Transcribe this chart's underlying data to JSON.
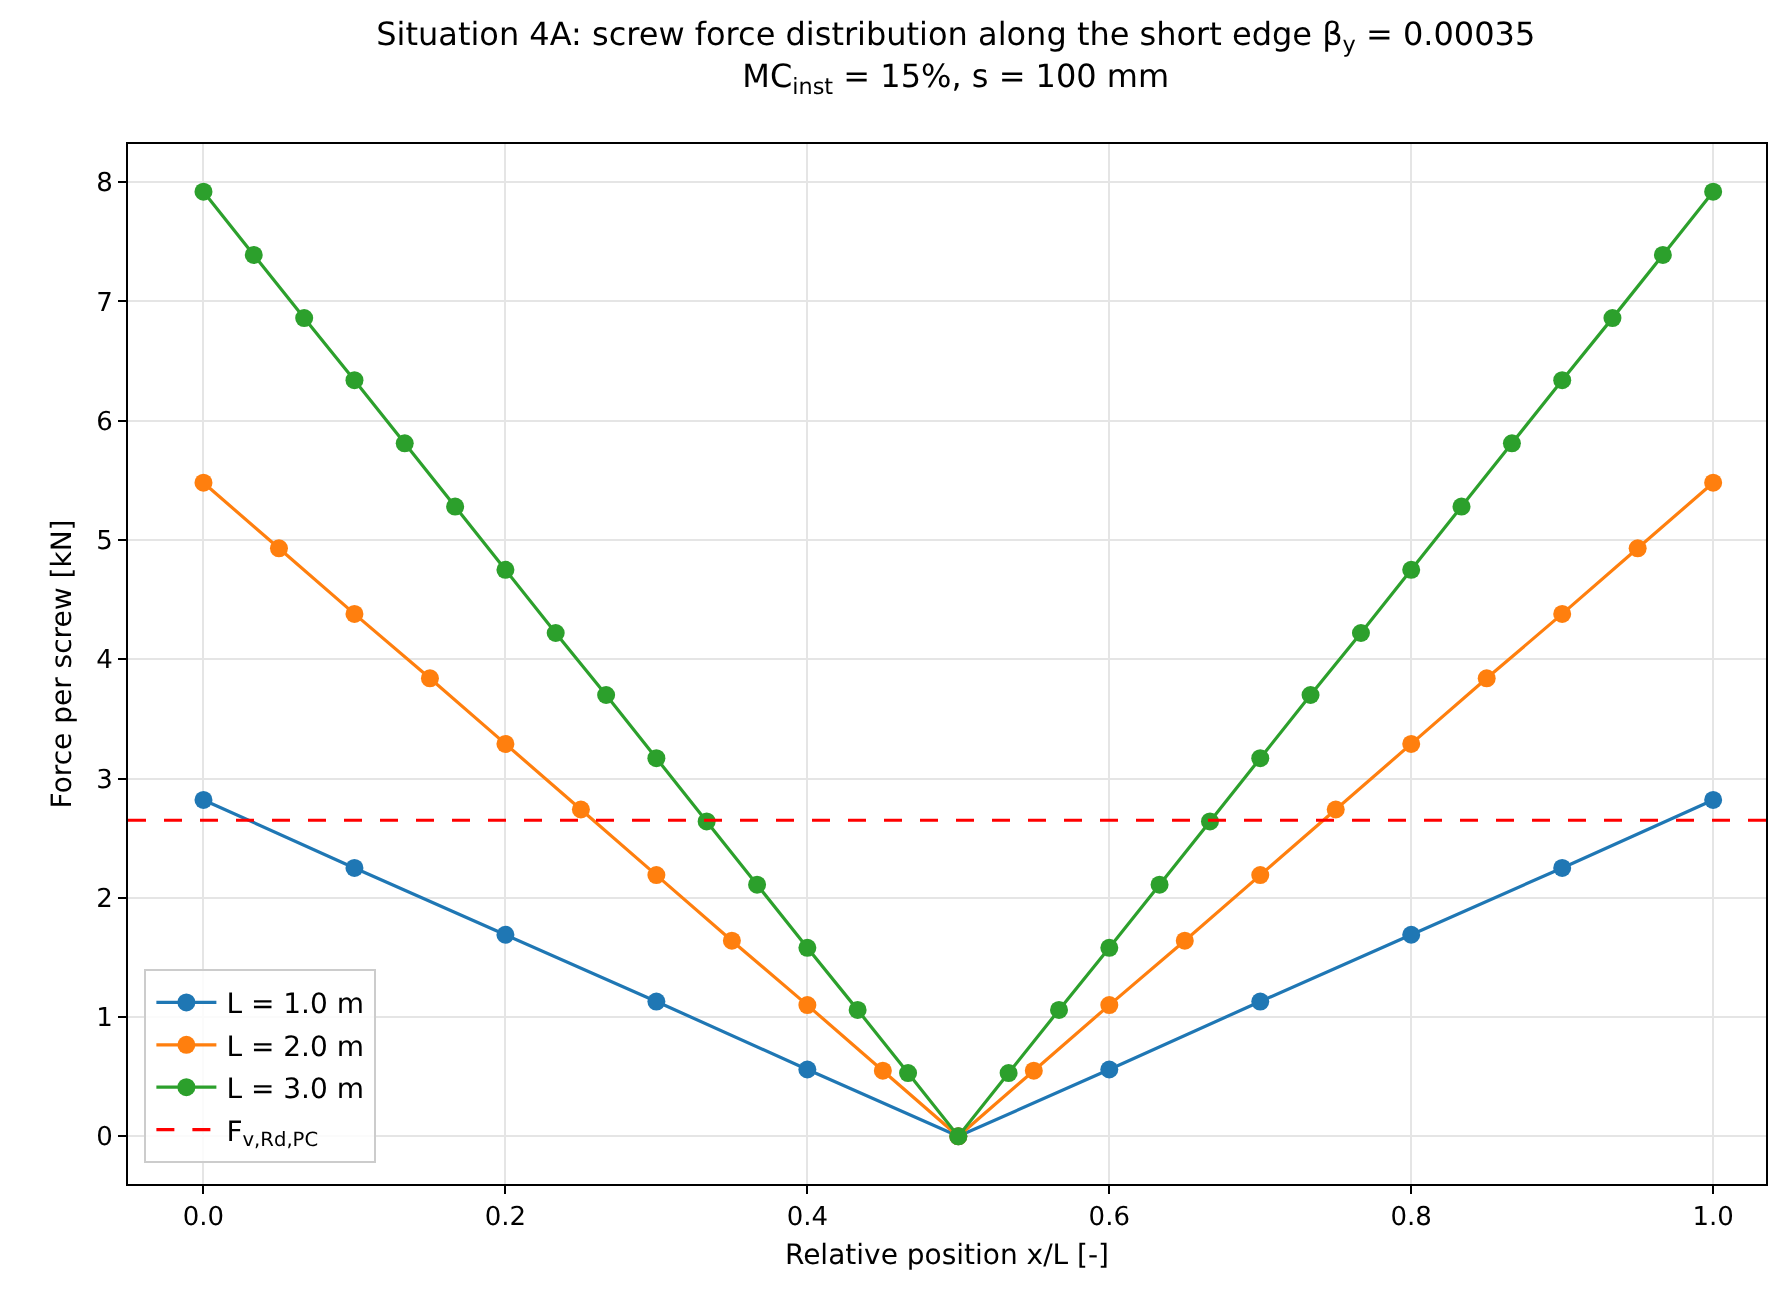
{
  "chart_data": {
    "type": "line",
    "title": "Situation 4A: screw force distribution along the short edge β$_{y}$ = 0.00035",
    "subtitle": "MC$_{inst}$ = 15%, s = 100 mm",
    "xlabel": "Relative position x/L [-]",
    "ylabel": "Force per screw [kN]",
    "series": [
      {
        "name": "L = 1.0 m",
        "color": "#1f77b4",
        "x": [
          0,
          0.1,
          0.2,
          0.3,
          0.4,
          0.5,
          0.6,
          0.7,
          0.8,
          0.9,
          1
        ],
        "values": [
          2.82,
          2.25,
          1.69,
          1.13,
          0.56,
          0,
          0.56,
          1.13,
          1.69,
          2.25,
          2.82
        ]
      },
      {
        "name": "L = 2.0 m",
        "color": "#ff7f0e",
        "x": [
          0,
          0.05,
          0.1,
          0.15,
          0.2,
          0.25,
          0.3,
          0.35,
          0.4,
          0.45,
          0.5,
          0.55,
          0.6,
          0.65,
          0.7,
          0.75,
          0.8,
          0.85,
          0.9,
          0.95,
          1
        ],
        "values": [
          5.48,
          4.93,
          4.38,
          3.84,
          3.29,
          2.74,
          2.19,
          1.64,
          1.1,
          0.55,
          0,
          0.55,
          1.1,
          1.64,
          2.19,
          2.74,
          3.29,
          3.84,
          4.38,
          4.93,
          5.48
        ]
      },
      {
        "name": "L = 3.0 m",
        "color": "#2ca02c",
        "x": [
          0,
          0.0333,
          0.0667,
          0.1,
          0.1333,
          0.1667,
          0.2,
          0.2333,
          0.2667,
          0.3,
          0.3333,
          0.3667,
          0.4,
          0.4333,
          0.4667,
          0.5,
          0.5333,
          0.5667,
          0.6,
          0.6333,
          0.6667,
          0.7,
          0.7333,
          0.7667,
          0.8,
          0.8333,
          0.8667,
          0.9,
          0.9333,
          0.9667,
          1
        ],
        "values": [
          7.92,
          7.39,
          6.86,
          6.34,
          5.81,
          5.28,
          4.75,
          4.22,
          3.7,
          3.17,
          2.64,
          2.11,
          1.58,
          1.06,
          0.53,
          0,
          0.53,
          1.06,
          1.58,
          2.11,
          2.64,
          3.17,
          3.7,
          4.22,
          4.75,
          5.28,
          5.81,
          6.34,
          6.86,
          7.39,
          7.92
        ]
      }
    ],
    "ref_lines": [
      {
        "axis": "y",
        "value": 2.65,
        "label": "F$_{v,Rd,PC}$",
        "color": "#ff0000",
        "line_style": "dashed"
      }
    ],
    "xlim": [
      -0.05,
      1.035
    ],
    "xticks": [
      {
        "value": 0,
        "label": "0.0"
      },
      {
        "value": 0.2,
        "label": "0.2"
      },
      {
        "value": 0.4,
        "label": "0.4"
      },
      {
        "value": 0.6,
        "label": "0.6"
      },
      {
        "value": 0.8,
        "label": "0.8"
      },
      {
        "value": 1,
        "label": "1.0"
      }
    ],
    "ylim": [
      -0.4,
      8.32
    ],
    "yticks": [
      0,
      1,
      2,
      3,
      4,
      5,
      6,
      7,
      8
    ],
    "grid": true,
    "legend": "bottom left",
    "marker": "circle",
    "line_style": "solid"
  }
}
